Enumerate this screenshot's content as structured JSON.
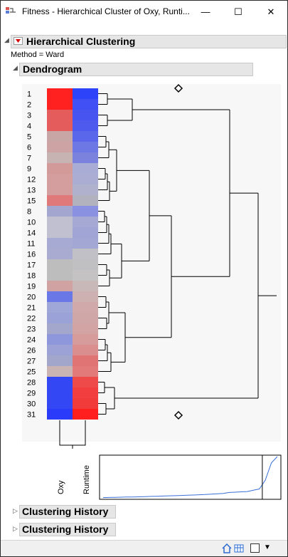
{
  "window": {
    "title": "Fitness - Hierarchical Cluster of Oxy, Runti...",
    "min_symbol": "—",
    "max_symbol": "☐",
    "close_symbol": "✕"
  },
  "report": {
    "title": "Hierarchical Clustering",
    "method_text": "Method = Ward",
    "dendrogram_title": "Dendrogram",
    "history_1": "Clustering History",
    "history_2": "Clustering History"
  },
  "dendrogram": {
    "row_labels": [
      "1",
      "2",
      "3",
      "4",
      "5",
      "6",
      "7",
      "9",
      "12",
      "13",
      "15",
      "8",
      "10",
      "14",
      "11",
      "16",
      "17",
      "18",
      "19",
      "20",
      "21",
      "22",
      "23",
      "24",
      "26",
      "27",
      "25",
      "28",
      "29",
      "30",
      "31"
    ],
    "column_labels": [
      "Oxy",
      "Runtime"
    ],
    "oxy_colors": [
      "#ff2020",
      "#ff2020",
      "#e45c5c",
      "#e45c5c",
      "#c9a6a6",
      "#cda3a3",
      "#c8b3b3",
      "#d39a9a",
      "#d49e9e",
      "#d49e9e",
      "#e07a7a",
      "#a3a6cf",
      "#c0c0d0",
      "#c0c0d0",
      "#a7abd4",
      "#a9acd0",
      "#bdbdbd",
      "#bdbdbd",
      "#d0a2a2",
      "#6a77e6",
      "#9fa6d8",
      "#9aa2d7",
      "#a2a7cb",
      "#8e97dc",
      "#9ca2d6",
      "#a3a6cb",
      "#cab3b3",
      "#3347f4",
      "#3347f4",
      "#3347f4",
      "#2a3cfa"
    ],
    "runtime_colors": [
      "#2d43f9",
      "#4050f5",
      "#4754ef",
      "#4d5aed",
      "#5a67ea",
      "#6d78e5",
      "#7a82dd",
      "#a9acd4",
      "#abadd2",
      "#b0b1cc",
      "#b2b2bf",
      "#8991e0",
      "#a5a9d4",
      "#a0a5d6",
      "#a2a7d3",
      "#c0c0c6",
      "#c0c0c2",
      "#c4c2c2",
      "#c9b8b8",
      "#cdb0b0",
      "#d0aaaa",
      "#d0a7a7",
      "#d3a4a4",
      "#d69b9b",
      "#da8e8e",
      "#e07474",
      "#e27a7a",
      "#ee4a4a",
      "#f23e3e",
      "#f13b3b",
      "#ff1f1f"
    ],
    "marker_symbol": "◇"
  },
  "history_plot": {
    "x": [
      1,
      2,
      3,
      4,
      5,
      6,
      7,
      8,
      9,
      10,
      11,
      12,
      13,
      14,
      15,
      16,
      17,
      18,
      19,
      20,
      21,
      22,
      23,
      24,
      25,
      26,
      27,
      28,
      29,
      30
    ],
    "y": [
      0.5,
      0.7,
      0.9,
      1.1,
      1.3,
      1.5,
      1.7,
      2.0,
      2.3,
      2.6,
      2.9,
      3.2,
      3.5,
      3.8,
      4.1,
      4.5,
      4.9,
      5.3,
      5.8,
      6.4,
      7.0,
      8.5,
      9,
      9.5,
      10,
      12,
      14,
      28,
      55,
      65
    ],
    "cut_x": 27.5,
    "line_color": "#3b6fd8"
  },
  "status": {
    "home_icon": "home-icon",
    "grid_icon": "grid-icon",
    "dropdown_symbol": "▼"
  }
}
